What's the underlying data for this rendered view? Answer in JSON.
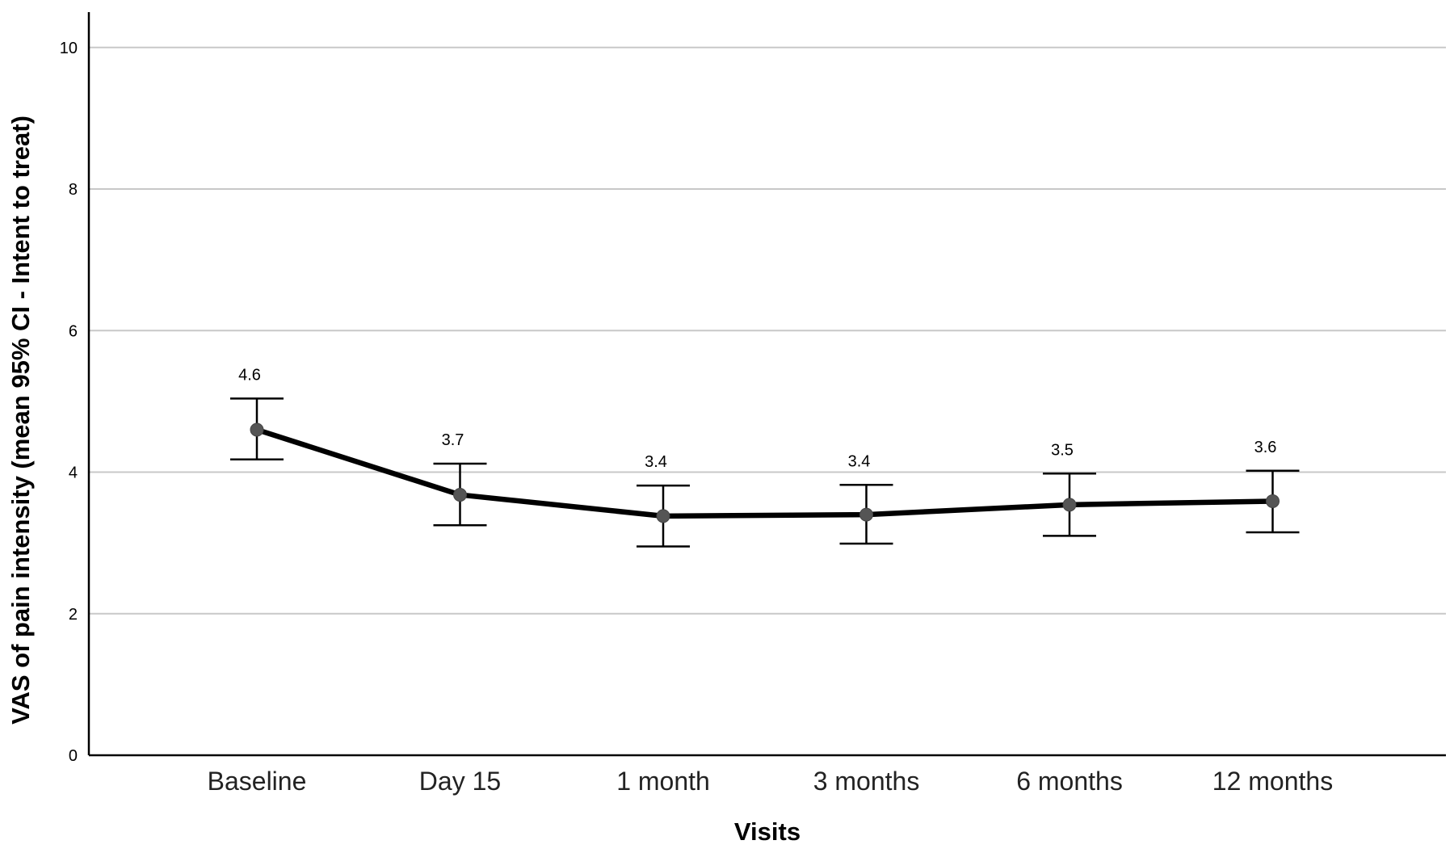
{
  "chart_data": {
    "type": "line",
    "title": "",
    "xlabel": "Visits",
    "ylabel": "VAS of pain intensity (mean 95% CI - Intent to treat)",
    "categories": [
      "Baseline",
      "Day 15",
      "1 month",
      "3 months",
      "6 months",
      "12 months"
    ],
    "series": [
      {
        "values": [
          4.6,
          3.68,
          3.38,
          3.4,
          3.54,
          3.59
        ],
        "ci_lower": [
          4.18,
          3.25,
          2.95,
          2.99,
          3.1,
          3.15
        ],
        "ci_upper": [
          5.04,
          4.12,
          3.81,
          3.82,
          3.98,
          4.02
        ],
        "data_labels": [
          "4.6",
          "3.7",
          "3.4",
          "3.4",
          "3.5",
          "3.6"
        ]
      }
    ],
    "ylim": [
      0,
      10.5
    ],
    "yticks": [
      0,
      2,
      4,
      6,
      8,
      10
    ],
    "ytick_labels": [
      "0",
      "2",
      "4",
      "6",
      "8",
      "10"
    ],
    "grid": true,
    "legend": "none",
    "colors": {
      "line": "#000000",
      "marker": "#555555",
      "gridline": "#c8c8c8"
    }
  }
}
